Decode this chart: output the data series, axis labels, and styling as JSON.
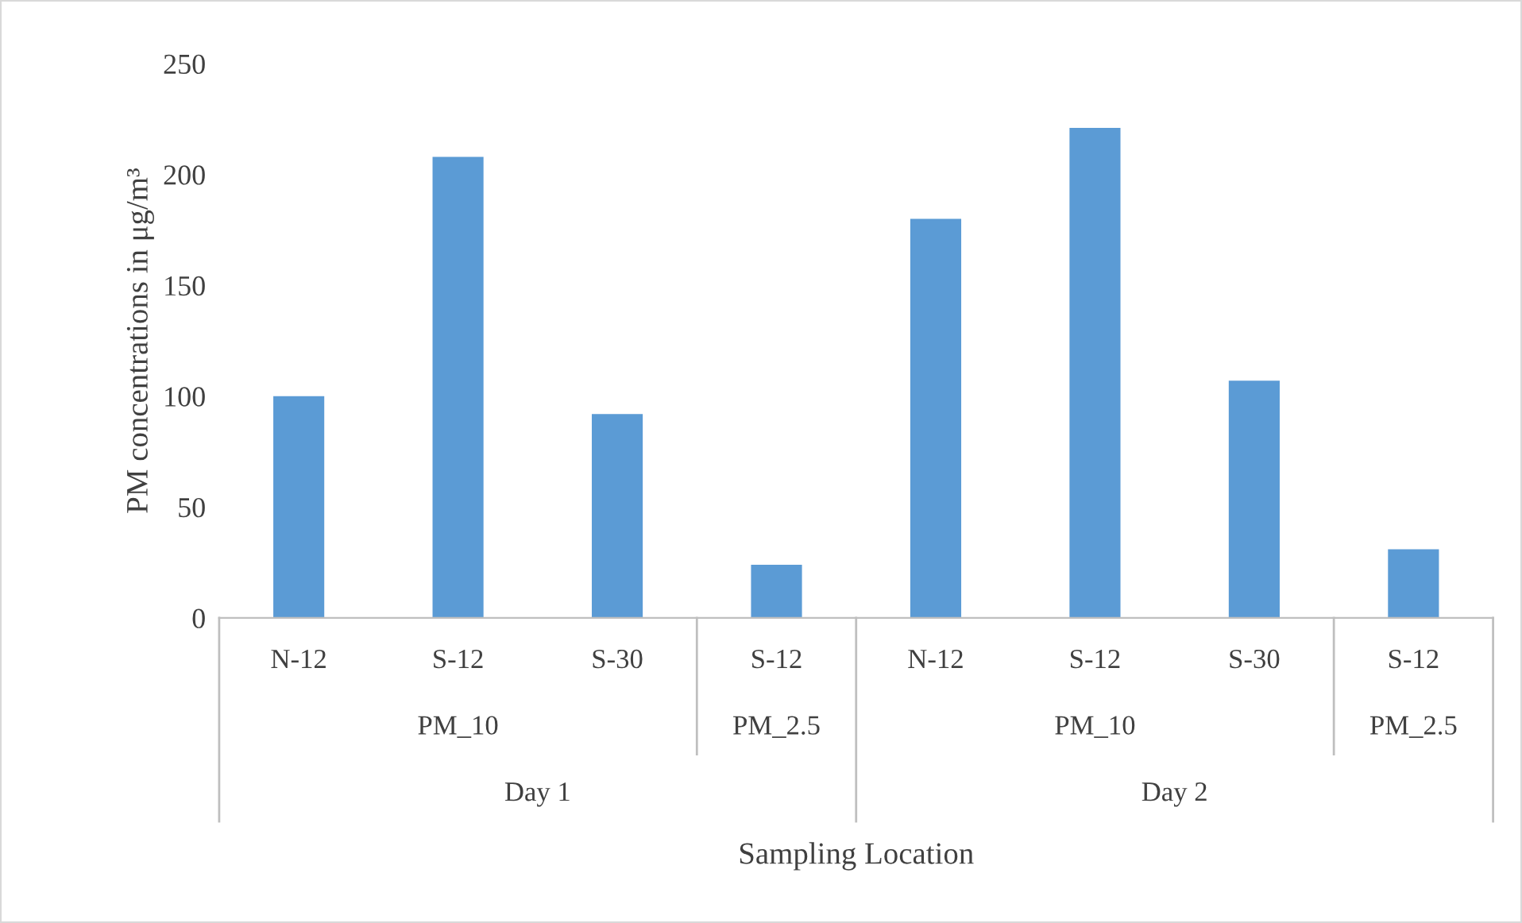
{
  "chart_data": {
    "type": "bar",
    "categories": [
      "N-12",
      "S-12",
      "S-30",
      "S-12",
      "N-12",
      "S-12",
      "S-30",
      "S-12"
    ],
    "values": [
      100,
      208,
      92,
      24,
      180,
      221,
      107,
      31
    ],
    "color": "#5b9bd5",
    "ylabel": "PM concentrations in μg/m³",
    "ylim": [
      0,
      250
    ],
    "yticks": [
      0,
      50,
      100,
      150,
      200,
      250
    ],
    "annotations": [
      "PM_10",
      "PM_2.5",
      "PM_10",
      "PM_2.5",
      "Day 1",
      "Day 2",
      "Sampling Location"
    ]
  }
}
